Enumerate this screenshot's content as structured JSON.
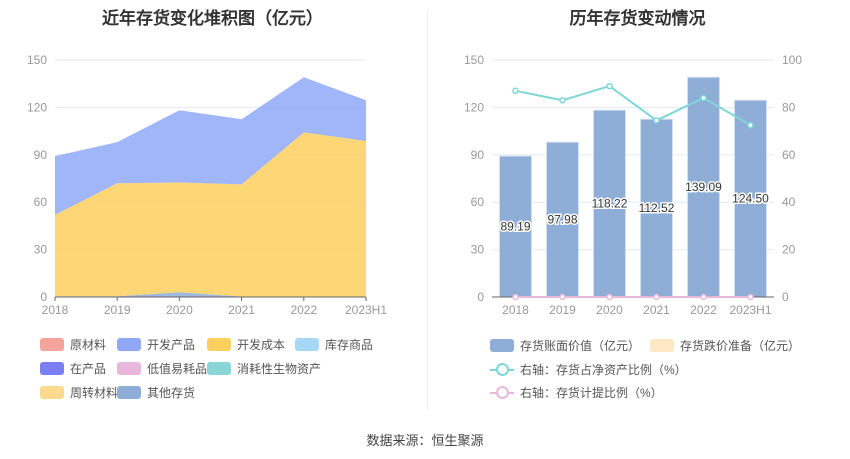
{
  "chart_data": [
    {
      "type": "area",
      "title": "近年存货变化堆积图（亿元）",
      "categories": [
        "2018",
        "2019",
        "2020",
        "2021",
        "2022",
        "2023H1"
      ],
      "ylim": [
        0,
        150
      ],
      "yticks": [
        0,
        30,
        60,
        90,
        120,
        150
      ],
      "series": [
        {
          "name": "原材料",
          "color": "#f4a49a",
          "values": [
            0,
            0,
            0,
            0,
            0,
            0
          ]
        },
        {
          "name": "开发产品",
          "color": "#8fa9f7",
          "values": [
            37.2,
            26.0,
            45.7,
            41.2,
            34.9,
            25.8
          ]
        },
        {
          "name": "开发成本",
          "color": "#fdcf5e",
          "values": [
            51.5,
            71.5,
            69.5,
            71.0,
            104.0,
            98.5
          ]
        },
        {
          "name": "库存商品",
          "color": "#a6d8f5",
          "values": [
            0,
            0,
            0,
            0,
            0,
            0
          ]
        },
        {
          "name": "在产品",
          "color": "#7b7ff5",
          "values": [
            0,
            0,
            0,
            0,
            0,
            0
          ]
        },
        {
          "name": "低值易耗品",
          "color": "#e8b8dc",
          "values": [
            0,
            0,
            0,
            0,
            0,
            0
          ]
        },
        {
          "name": "消耗性生物资产",
          "color": "#8ad6d6",
          "values": [
            0,
            0,
            0,
            0,
            0,
            0
          ]
        },
        {
          "name": "周转材料",
          "color": "#fbd98f",
          "values": [
            0,
            0,
            0,
            0,
            0,
            0
          ]
        },
        {
          "name": "其他存货",
          "color": "#8eaed8",
          "values": [
            0.5,
            0.5,
            3.0,
            0.3,
            0.2,
            0.2
          ]
        }
      ]
    },
    {
      "type": "bar",
      "title": "历年存货变动情况",
      "categories": [
        "2018",
        "2019",
        "2020",
        "2021",
        "2022",
        "2023H1"
      ],
      "ylim": [
        0,
        150
      ],
      "yticks": [
        0,
        30,
        60,
        90,
        120,
        150
      ],
      "y2lim": [
        0,
        100
      ],
      "y2ticks": [
        0,
        20,
        40,
        60,
        80,
        100
      ],
      "series": [
        {
          "name": "存货账面价值（亿元）",
          "color": "#8eaed8",
          "values": [
            89.19,
            97.98,
            118.22,
            112.52,
            139.09,
            124.5
          ],
          "labels": [
            "89.19",
            "97.98",
            "118.22",
            "112.52",
            "139.09",
            "124.50"
          ]
        },
        {
          "name": "存货跌价准备（亿元）",
          "color": "#fde7c4",
          "values": [
            0,
            0,
            0,
            0,
            0,
            0
          ]
        },
        {
          "name": "右轴：存货占净资产比例（%）",
          "color": "#7fd6d6",
          "axis": "right",
          "values": [
            87,
            83,
            89,
            74.5,
            84,
            72.5
          ]
        },
        {
          "name": "右轴：存货计提比例（%）",
          "color": "#e8b8dc",
          "axis": "right",
          "values": [
            0,
            0,
            0,
            0,
            0,
            0
          ]
        }
      ]
    }
  ],
  "source": "数据来源：恒生聚源"
}
